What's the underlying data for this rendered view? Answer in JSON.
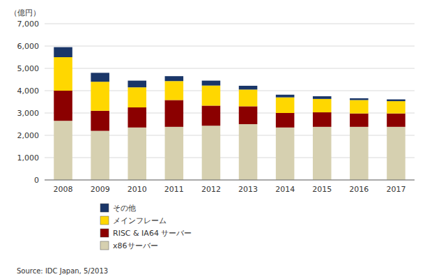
{
  "chart_data": {
    "type": "bar",
    "stacked": true,
    "y_label": "（億円）",
    "source": "Source: IDC Japan, 5/2013",
    "categories": [
      "2008",
      "2009",
      "2010",
      "2011",
      "2012",
      "2013",
      "2014",
      "2015",
      "2016",
      "2017"
    ],
    "series": [
      {
        "name": "x86サーバー",
        "color": "#d6d0b0",
        "values": [
          2650,
          2200,
          2350,
          2380,
          2430,
          2500,
          2350,
          2380,
          2380,
          2380
        ]
      },
      {
        "name": "RISC & IA64 サーバー",
        "color": "#8b0000",
        "values": [
          1350,
          900,
          900,
          1200,
          900,
          800,
          650,
          650,
          600,
          600
        ]
      },
      {
        "name": "メインフレーム",
        "color": "#ffd700",
        "values": [
          1500,
          1300,
          900,
          850,
          900,
          750,
          700,
          600,
          600,
          550
        ]
      },
      {
        "name": "その他",
        "color": "#1a3668",
        "values": [
          450,
          400,
          300,
          220,
          220,
          170,
          120,
          120,
          80,
          80
        ]
      }
    ],
    "ylim": [
      0,
      7000
    ],
    "yticks": [
      0,
      {
        "value": 1000,
        "label": "1,000"
      },
      {
        "value": 2000,
        "label": "2,000"
      },
      {
        "value": 3000,
        "label": "3,000"
      },
      {
        "value": 4000,
        "label": "4,000"
      },
      {
        "value": 5000,
        "label": "5,000"
      },
      {
        "value": 6000,
        "label": "6,000"
      },
      {
        "value": 7000,
        "label": "7,000"
      }
    ],
    "grid": true,
    "legend": "bottom"
  }
}
